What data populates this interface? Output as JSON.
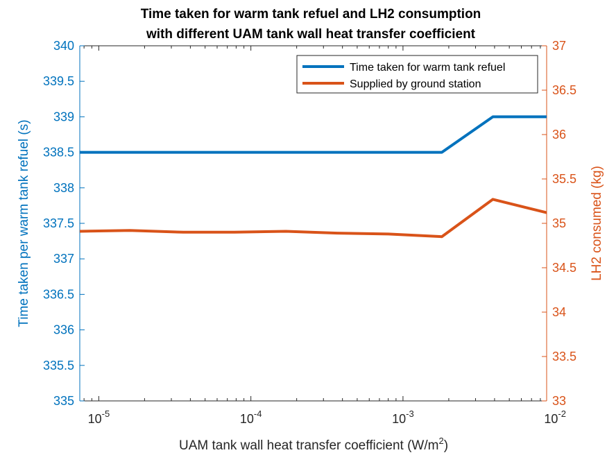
{
  "chart_data": {
    "type": "line",
    "title_line1": "Time taken for warm tank refuel and LH2 consumption",
    "title_line2": "with different UAM tank wall heat transfer coefficient",
    "xlabel_main": "UAM tank wall heat transfer coefficient (W/m",
    "xlabel_sup": "2",
    "xlabel_end": ")",
    "ylabel_left": "Time taken per warm tank refuel (s)",
    "ylabel_right": "LH2 consumed (kg)",
    "x_scale": "log",
    "xlim": [
      7.5e-06,
      0.0088
    ],
    "ylim_left": [
      335,
      340
    ],
    "ylim_right": [
      33,
      37
    ],
    "x_ticks": [
      {
        "value": 1e-05,
        "base": "10",
        "exp": "-5"
      },
      {
        "value": 0.0001,
        "base": "10",
        "exp": "-4"
      },
      {
        "value": 0.001,
        "base": "10",
        "exp": "-3"
      },
      {
        "value": 0.01,
        "base": "10",
        "exp": "-2"
      }
    ],
    "y_ticks_left": [
      "335",
      "335.5",
      "336",
      "336.5",
      "337",
      "337.5",
      "338",
      "338.5",
      "339",
      "339.5",
      "340"
    ],
    "y_ticks_right": [
      "33",
      "33.5",
      "34",
      "34.5",
      "35",
      "35.5",
      "36",
      "36.5",
      "37"
    ],
    "grid": false,
    "legend_position": "top-right",
    "colors": {
      "left_axis": "#0072BD",
      "right_axis": "#D95319",
      "series_blue": "#0072BD",
      "series_orange": "#D95319"
    },
    "series": [
      {
        "name": "Time taken for warm tank refuel",
        "axis": "left",
        "color": "#0072BD",
        "x": [
          7.5e-06,
          0.0018,
          0.0039,
          0.0088
        ],
        "y": [
          338.5,
          338.5,
          339,
          339
        ]
      },
      {
        "name": "Supplied by ground station",
        "axis": "right",
        "color": "#D95319",
        "x": [
          7.5e-06,
          1.6e-05,
          3.6e-05,
          7.8e-05,
          0.00017,
          0.00037,
          0.0008,
          0.0018,
          0.0039,
          0.0088
        ],
        "y": [
          34.91,
          34.92,
          34.9,
          34.9,
          34.91,
          34.89,
          34.88,
          34.85,
          35.27,
          35.12
        ]
      }
    ]
  }
}
